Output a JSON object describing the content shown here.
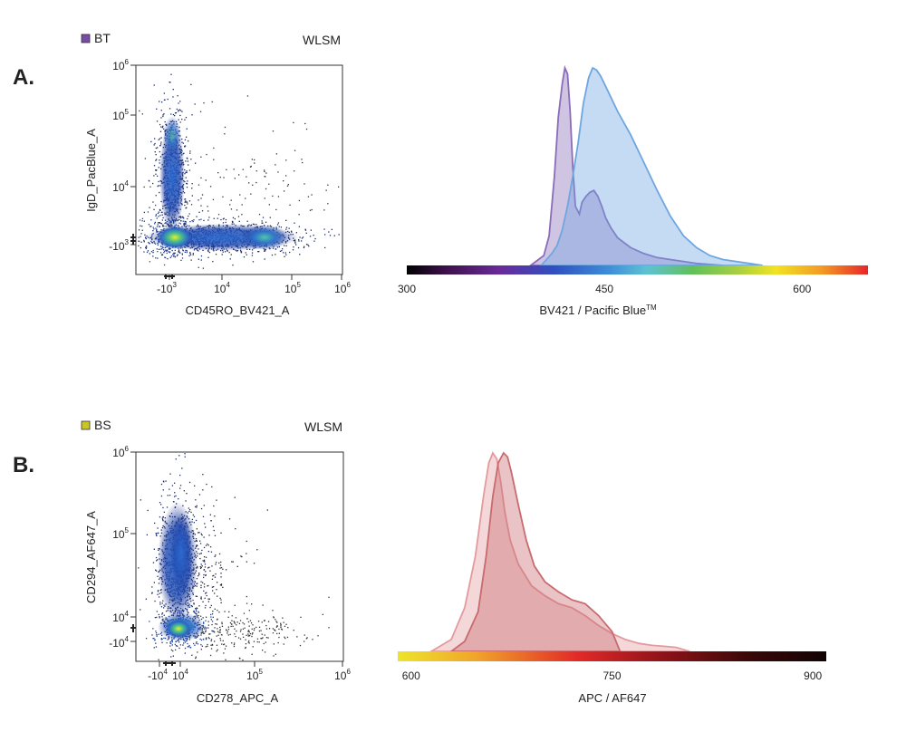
{
  "chart_data": [
    {
      "panel": "A.",
      "type": "scatter",
      "legend": {
        "label": "BT",
        "color": "#7a4ca3"
      },
      "corner_label": "WLSM",
      "xlabel": "CD45RO_BV421_A",
      "ylabel": "IgD_PacBlue_A",
      "x_ticks": [
        {
          "base": "-10",
          "exp": "3",
          "value": -1000
        },
        {
          "base": "10",
          "exp": "4",
          "value": 10000
        },
        {
          "base": "10",
          "exp": "5",
          "value": 100000
        },
        {
          "base": "10",
          "exp": "6",
          "value": 1000000
        }
      ],
      "y_ticks": [
        {
          "base": "-10",
          "exp": "3",
          "value": -1000
        },
        {
          "base": "10",
          "exp": "4",
          "value": 10000
        },
        {
          "base": "10",
          "exp": "5",
          "value": 100000
        },
        {
          "base": "10",
          "exp": "6",
          "value": 1000000
        }
      ],
      "populations": [
        {
          "name": "IgD+ CD45RO-",
          "center_x": -1000,
          "center_y": 30000,
          "density": "high"
        },
        {
          "name": "double negative",
          "center_x": -1000,
          "center_y": -1000,
          "density": "highest"
        },
        {
          "name": "CD45RO+ IgD-",
          "center_x": 50000,
          "center_y": -1000,
          "density": "high"
        }
      ]
    },
    {
      "panel": "A.",
      "type": "area",
      "xlabel": "BV421 / Pacific Blue",
      "xlabel_tm": "TM",
      "x_ticks": [
        300,
        450,
        600
      ],
      "xlim": [
        300,
        650
      ],
      "colorbar": "visible spectrum (300–650 nm)",
      "series": [
        {
          "name": "BV421",
          "color": "#8a6cb8",
          "x": [
            394,
            404,
            408,
            412,
            415,
            418,
            420,
            422,
            424,
            426,
            428,
            431,
            433,
            436,
            439,
            442,
            445,
            448,
            451,
            455,
            460,
            470,
            480,
            490,
            500,
            510,
            520,
            530,
            540
          ],
          "y": [
            0,
            0.05,
            0.15,
            0.45,
            0.75,
            0.92,
            1.0,
            0.97,
            0.78,
            0.5,
            0.3,
            0.26,
            0.32,
            0.35,
            0.37,
            0.38,
            0.35,
            0.3,
            0.24,
            0.19,
            0.14,
            0.09,
            0.06,
            0.04,
            0.03,
            0.02,
            0.01,
            0.005,
            0
          ]
        },
        {
          "name": "Pacific Blue",
          "color": "#6fa6e0",
          "x": [
            402,
            406,
            410,
            414,
            418,
            422,
            426,
            430,
            434,
            438,
            441,
            444,
            447,
            450,
            455,
            460,
            470,
            480,
            490,
            500,
            510,
            520,
            530,
            540,
            560,
            570
          ],
          "y": [
            0,
            0.03,
            0.06,
            0.1,
            0.18,
            0.3,
            0.45,
            0.62,
            0.82,
            0.95,
            1.0,
            0.99,
            0.96,
            0.92,
            0.85,
            0.78,
            0.66,
            0.52,
            0.38,
            0.25,
            0.15,
            0.09,
            0.05,
            0.03,
            0.01,
            0
          ]
        }
      ]
    },
    {
      "panel": "B.",
      "type": "scatter",
      "legend": {
        "label": "BS",
        "color": "#c9c624"
      },
      "corner_label": "WLSM",
      "xlabel": "CD278_APC_A",
      "ylabel": "CD294_AF647_A",
      "x_ticks": [
        {
          "base": "-10",
          "exp": "4",
          "value": -10000
        },
        {
          "base": "10",
          "exp": "4",
          "value": 10000
        },
        {
          "base": "10",
          "exp": "5",
          "value": 100000
        },
        {
          "base": "10",
          "exp": "6",
          "value": 1000000
        }
      ],
      "y_ticks": [
        {
          "base": "10",
          "exp": "6",
          "value": 1000000
        },
        {
          "base": "10",
          "exp": "5",
          "value": 100000
        },
        {
          "base": "10",
          "exp": "4",
          "value": 10000
        },
        {
          "base": "-10",
          "exp": "4",
          "value": -10000
        }
      ],
      "populations": [
        {
          "name": "CD294+ column",
          "center_x": 1000,
          "center_y": 60000,
          "density": "high"
        },
        {
          "name": "low cluster",
          "center_x": 1000,
          "center_y": 2000,
          "density": "highest"
        },
        {
          "name": "CD278+ tail",
          "center_x": 40000,
          "center_y": 2000,
          "density": "low"
        }
      ]
    },
    {
      "panel": "B.",
      "type": "area",
      "xlabel": "APC / AF647",
      "x_ticks": [
        600,
        750,
        900
      ],
      "xlim": [
        590,
        910
      ],
      "colorbar": "red-spectrum (590–910 nm)",
      "series": [
        {
          "name": "AF647",
          "color": "#e39a9d",
          "x": [
            615,
            630,
            640,
            648,
            654,
            658,
            661,
            664,
            667,
            670,
            674,
            680,
            690,
            700,
            710,
            720,
            730,
            740,
            750,
            760,
            770,
            780,
            790,
            798,
            803,
            808
          ],
          "y": [
            0,
            0.06,
            0.22,
            0.48,
            0.78,
            0.95,
            1.0,
            0.97,
            0.85,
            0.7,
            0.56,
            0.44,
            0.33,
            0.28,
            0.24,
            0.22,
            0.18,
            0.13,
            0.09,
            0.06,
            0.04,
            0.03,
            0.025,
            0.02,
            0.01,
            0
          ]
        },
        {
          "name": "APC",
          "color": "#c86a6e",
          "x": [
            630,
            640,
            650,
            656,
            661,
            665,
            669,
            672,
            675,
            680,
            686,
            692,
            700,
            710,
            720,
            730,
            740,
            750,
            756
          ],
          "y": [
            0,
            0.05,
            0.2,
            0.48,
            0.78,
            0.95,
            1.0,
            0.98,
            0.9,
            0.74,
            0.56,
            0.43,
            0.35,
            0.3,
            0.26,
            0.24,
            0.18,
            0.1,
            0
          ]
        }
      ]
    }
  ]
}
